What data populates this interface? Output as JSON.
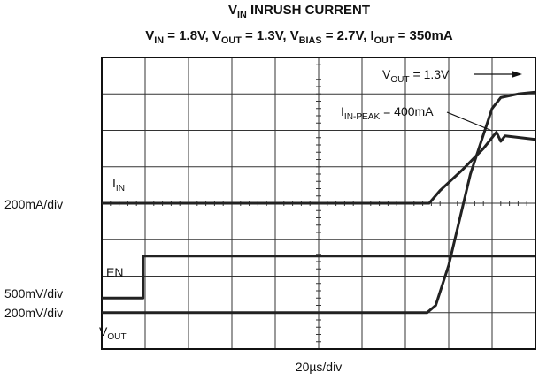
{
  "chart_data": {
    "type": "line",
    "title": [
      "V",
      "IN",
      " INRUSH CURRENT"
    ],
    "subtitle": [
      "V",
      "IN",
      " = 1.8V, V",
      "OUT",
      " = 1.3V, V",
      "BIAS",
      " = 2.7V, I",
      "OUT",
      " = 350mA"
    ],
    "xlabel": "20µs/div",
    "xlim": [
      0,
      10
    ],
    "ylim": [
      0,
      8
    ],
    "xticks": [
      0,
      1,
      2,
      3,
      4,
      5,
      6,
      7,
      8,
      9,
      10
    ],
    "yticks": [
      0,
      1,
      2,
      3,
      4,
      5,
      6,
      7,
      8
    ],
    "grid": true,
    "series": [
      {
        "label": [
          "I",
          "IN"
        ],
        "scale": "200mA/div",
        "color": "#222",
        "x": [
          0,
          7.55,
          7.8,
          8.3,
          8.8,
          9.1,
          9.2,
          9.3,
          10
        ],
        "y": [
          4,
          4,
          4.35,
          4.9,
          5.5,
          5.95,
          5.7,
          5.85,
          5.75
        ]
      },
      {
        "label": [
          "EN"
        ],
        "scale": "500mV/div",
        "color": "#222",
        "x": [
          0,
          0.95,
          0.95,
          10
        ],
        "y": [
          1.4,
          1.4,
          2.55,
          2.55
        ]
      },
      {
        "label": [
          "V",
          "OUT"
        ],
        "scale": "200mV/div",
        "color": "#222",
        "x": [
          0,
          7.5,
          7.7,
          8.0,
          8.5,
          9.0,
          9.2,
          9.6,
          10
        ],
        "y": [
          1.0,
          1.0,
          1.2,
          2.3,
          4.8,
          6.6,
          6.9,
          7.0,
          7.05
        ]
      }
    ],
    "annotations": [
      {
        "text": [
          "V",
          "OUT",
          " = 1.3V"
        ]
      },
      {
        "text": [
          "I",
          "IN-PEAK",
          " = 400mA"
        ]
      }
    ]
  }
}
